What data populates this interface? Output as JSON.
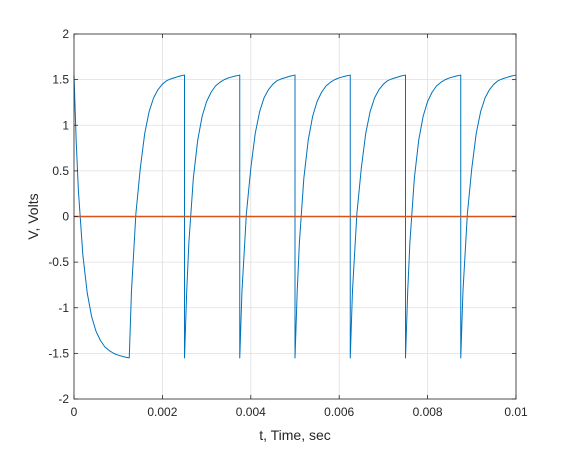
{
  "chart_data": {
    "type": "line",
    "title": "",
    "xlabel": "t, Time, sec",
    "ylabel": "V, Volts",
    "xlim": [
      0,
      0.01
    ],
    "ylim": [
      -2,
      2
    ],
    "xticks": [
      0,
      0.002,
      0.004,
      0.006,
      0.008,
      0.01
    ],
    "xtick_labels": [
      "0",
      "0.002",
      "0.004",
      "0.006",
      "0.008",
      "0.01"
    ],
    "yticks": [
      -2,
      -1.5,
      -1,
      -0.5,
      0,
      0.5,
      1,
      1.5,
      2
    ],
    "ytick_labels": [
      "-2",
      "-1.5",
      "-1",
      "-0.5",
      "0",
      "0.5",
      "1",
      "1.5",
      "2"
    ],
    "grid": true,
    "legend": "none",
    "series": [
      {
        "color": "#0072BD",
        "x": [
          0,
          5e-05,
          0.0001,
          0.0002,
          0.0003,
          0.0004,
          0.0005,
          0.0006,
          0.0007,
          0.0008,
          0.0009,
          0.001,
          0.00115,
          0.00125,
          0.00125,
          0.0013,
          0.0014,
          0.0015,
          0.0016,
          0.0017,
          0.0018,
          0.0019,
          0.002,
          0.0021,
          0.0022,
          0.0024,
          0.0025,
          0.0025,
          0.00255,
          0.0026,
          0.0027,
          0.0028,
          0.0029,
          0.003,
          0.0031,
          0.0032,
          0.0033,
          0.0034,
          0.0035,
          0.00365,
          0.00375,
          0.00375,
          0.0038,
          0.0039,
          0.004,
          0.0041,
          0.0042,
          0.0043,
          0.0044,
          0.0045,
          0.0046,
          0.0047,
          0.0049,
          0.005,
          0.005,
          0.00505,
          0.0051,
          0.0052,
          0.0053,
          0.0054,
          0.0055,
          0.0056,
          0.0057,
          0.0058,
          0.0059,
          0.006,
          0.00615,
          0.00625,
          0.00625,
          0.0063,
          0.0064,
          0.0065,
          0.0066,
          0.0067,
          0.0068,
          0.0069,
          0.007,
          0.0071,
          0.0072,
          0.0074,
          0.0075,
          0.0075,
          0.00755,
          0.0076,
          0.0077,
          0.0078,
          0.0079,
          0.008,
          0.0081,
          0.0082,
          0.0083,
          0.0084,
          0.0085,
          0.00865,
          0.00875,
          0.00875,
          0.0088,
          0.0089,
          0.009,
          0.0091,
          0.0092,
          0.0093,
          0.0094,
          0.0095,
          0.0096,
          0.0097,
          0.0099,
          0.01
        ],
        "y": [
          1.55,
          0.82,
          0.28,
          -0.42,
          -0.84,
          -1.1,
          -1.26,
          -1.36,
          -1.43,
          -1.47,
          -1.5,
          -1.52,
          -1.54,
          -1.55,
          -1.55,
          -0.82,
          0.03,
          0.53,
          0.91,
          1.15,
          1.3,
          1.39,
          1.45,
          1.49,
          1.51,
          1.54,
          1.55,
          -1.55,
          -0.82,
          -0.28,
          0.42,
          0.84,
          1.1,
          1.26,
          1.36,
          1.43,
          1.47,
          1.5,
          1.52,
          1.54,
          1.55,
          -1.55,
          -0.82,
          0.03,
          0.53,
          0.91,
          1.15,
          1.3,
          1.39,
          1.45,
          1.49,
          1.51,
          1.54,
          1.55,
          -1.55,
          -0.82,
          -0.28,
          0.42,
          0.84,
          1.1,
          1.26,
          1.36,
          1.43,
          1.47,
          1.5,
          1.52,
          1.54,
          1.55,
          -1.55,
          -0.82,
          0.03,
          0.53,
          0.91,
          1.15,
          1.3,
          1.39,
          1.45,
          1.49,
          1.51,
          1.54,
          1.55,
          -1.55,
          -0.82,
          -0.28,
          0.42,
          0.84,
          1.1,
          1.26,
          1.36,
          1.43,
          1.47,
          1.5,
          1.52,
          1.54,
          1.55,
          -1.55,
          -0.82,
          0.03,
          0.53,
          0.91,
          1.15,
          1.3,
          1.39,
          1.45,
          1.49,
          1.51,
          1.54,
          1.55
        ]
      },
      {
        "color": "#D95319",
        "x": [
          0,
          0.01
        ],
        "y": [
          0,
          0
        ]
      }
    ]
  }
}
